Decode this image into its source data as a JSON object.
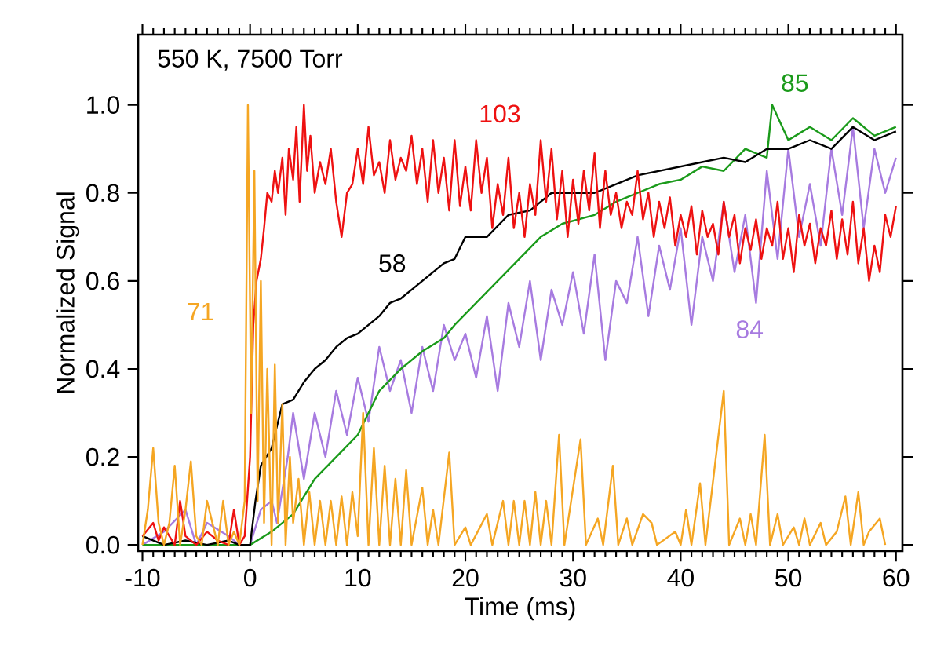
{
  "chart_data": {
    "type": "line",
    "xlabel": "Time (ms)",
    "ylabel": "Normalized Signal",
    "annotations": [
      "550 K, 7500 Torr"
    ],
    "xlim": [
      -10.4,
      60.6
    ],
    "ylim": [
      -0.014,
      1.16
    ],
    "xticks": [
      -10,
      0,
      10,
      20,
      30,
      40,
      50,
      60
    ],
    "yticks": [
      {
        "value": 0,
        "label": "0.0"
      },
      {
        "value": 0.2,
        "label": "0.2"
      },
      {
        "value": 0.4,
        "label": "0.4"
      },
      {
        "value": 0.6,
        "label": "0.6"
      },
      {
        "value": 0.8,
        "label": "0.8"
      },
      {
        "value": 1.0,
        "label": "1.0"
      }
    ],
    "grid": false,
    "legend": false,
    "marker": "none",
    "line_style": "solid",
    "series": [
      {
        "name": "84",
        "color": "#a77be0",
        "x": [
          -10,
          -8,
          -6,
          -5,
          -4,
          -2,
          -1,
          0,
          1,
          2,
          2.5,
          3.5,
          4,
          5,
          6,
          7,
          8,
          9,
          10,
          11,
          12,
          13,
          14,
          15,
          16,
          17,
          18,
          19,
          20,
          21,
          22,
          23,
          24,
          25,
          26,
          27,
          28,
          29,
          30,
          31,
          32,
          33,
          34,
          35,
          36,
          37,
          38,
          39,
          40,
          41,
          42,
          43,
          44,
          45,
          46,
          47,
          48,
          49,
          50,
          51,
          52,
          53,
          54,
          55,
          56,
          57,
          58,
          59,
          60
        ],
        "values": [
          0,
          0.03,
          0.08,
          0,
          0.05,
          0.02,
          0,
          0,
          0.08,
          0.1,
          0.05,
          0.2,
          0.3,
          0.15,
          0.3,
          0.2,
          0.35,
          0.25,
          0.38,
          0.28,
          0.45,
          0.35,
          0.42,
          0.3,
          0.45,
          0.35,
          0.5,
          0.42,
          0.48,
          0.38,
          0.52,
          0.35,
          0.55,
          0.45,
          0.6,
          0.42,
          0.58,
          0.5,
          0.62,
          0.48,
          0.66,
          0.42,
          0.6,
          0.55,
          0.7,
          0.52,
          0.68,
          0.58,
          0.72,
          0.5,
          0.7,
          0.6,
          0.78,
          0.62,
          0.75,
          0.55,
          0.85,
          0.65,
          0.9,
          0.7,
          0.82,
          0.68,
          0.9,
          0.75,
          0.95,
          0.72,
          0.9,
          0.8,
          0.88
        ]
      },
      {
        "name": "85",
        "color": "#1a9a1a",
        "x": [
          -10,
          -5,
          -1,
          0,
          2,
          4,
          6,
          8,
          10,
          11,
          12,
          14,
          16,
          18,
          19,
          21,
          23,
          25,
          27,
          29,
          32,
          34,
          36,
          38,
          40,
          42,
          44,
          46,
          48,
          48.5,
          50,
          52,
          54,
          56,
          58,
          60
        ],
        "values": [
          0,
          0,
          0,
          0,
          0.03,
          0.07,
          0.15,
          0.2,
          0.25,
          0.3,
          0.35,
          0.4,
          0.44,
          0.47,
          0.5,
          0.55,
          0.6,
          0.65,
          0.7,
          0.73,
          0.75,
          0.78,
          0.8,
          0.82,
          0.83,
          0.86,
          0.85,
          0.9,
          0.88,
          1.0,
          0.92,
          0.95,
          0.92,
          0.97,
          0.93,
          0.95
        ]
      },
      {
        "name": "58",
        "color": "#000000",
        "x": [
          -10,
          -8,
          -6,
          -4,
          -2,
          -1,
          0,
          0.5,
          1,
          2,
          3,
          4,
          5,
          6,
          7,
          8,
          9,
          10,
          12,
          13,
          14,
          15,
          17,
          18,
          19,
          20,
          22,
          24,
          26,
          28,
          30,
          32,
          34,
          36,
          38,
          40,
          42,
          44,
          46,
          48,
          50,
          52,
          54,
          56,
          58,
          60
        ],
        "values": [
          0.02,
          0,
          0.01,
          0,
          0.01,
          0,
          0,
          0.1,
          0.18,
          0.22,
          0.32,
          0.33,
          0.37,
          0.4,
          0.42,
          0.45,
          0.47,
          0.48,
          0.52,
          0.55,
          0.56,
          0.58,
          0.62,
          0.64,
          0.65,
          0.7,
          0.7,
          0.75,
          0.76,
          0.8,
          0.8,
          0.8,
          0.82,
          0.84,
          0.85,
          0.86,
          0.87,
          0.88,
          0.87,
          0.9,
          0.9,
          0.92,
          0.9,
          0.95,
          0.92,
          0.94
        ]
      },
      {
        "name": "103",
        "color": "#ee1111",
        "x": [
          -10,
          -9,
          -8.5,
          -8,
          -7,
          -6.5,
          -6,
          -5,
          -4,
          -3,
          -2,
          -1.5,
          -1,
          -0.5,
          0,
          0.3,
          0.6,
          1,
          1.3,
          1.6,
          2,
          2.3,
          2.6,
          3,
          3.3,
          3.6,
          4,
          4.3,
          4.6,
          5,
          5.3,
          5.6,
          6,
          6.5,
          7,
          7.5,
          8,
          8.5,
          9,
          9.5,
          10,
          10.5,
          11,
          11.5,
          12,
          12.5,
          13,
          13.5,
          14,
          14.5,
          15,
          15.5,
          16,
          16.5,
          17,
          17.5,
          18,
          18.5,
          19,
          19.5,
          20,
          20.5,
          21,
          21.5,
          22,
          22.5,
          23,
          23.5,
          24,
          24.5,
          25,
          25.5,
          26,
          26.5,
          27,
          27.5,
          28,
          28.5,
          29,
          29.5,
          30,
          30.5,
          31,
          31.5,
          32,
          32.5,
          33,
          33.5,
          34,
          34.5,
          35,
          35.5,
          36,
          36.5,
          37,
          37.5,
          38,
          38.5,
          39,
          39.5,
          40,
          40.5,
          41,
          41.5,
          42,
          42.5,
          43,
          43.5,
          44,
          44.5,
          45,
          45.5,
          46,
          46.5,
          47,
          47.5,
          48,
          48.5,
          49,
          49.5,
          50,
          50.5,
          51,
          51.5,
          52,
          52.5,
          53,
          53.5,
          54,
          54.5,
          55,
          55.5,
          56,
          56.5,
          57,
          57.5,
          58,
          58.5,
          59,
          59.5,
          60
        ],
        "values": [
          0.02,
          0.05,
          0.01,
          0.04,
          0,
          0.1,
          0.02,
          0,
          0.03,
          0.01,
          0,
          0.08,
          0,
          0.02,
          0.2,
          0.5,
          0.6,
          0.65,
          0.72,
          0.8,
          0.78,
          0.85,
          0.8,
          0.88,
          0.75,
          0.9,
          0.83,
          0.95,
          0.78,
          1.0,
          0.85,
          0.93,
          0.8,
          0.87,
          0.82,
          0.9,
          0.78,
          0.7,
          0.8,
          0.82,
          0.9,
          0.82,
          0.95,
          0.84,
          0.87,
          0.8,
          0.92,
          0.83,
          0.88,
          0.85,
          0.93,
          0.82,
          0.9,
          0.78,
          0.92,
          0.8,
          0.88,
          0.76,
          0.92,
          0.77,
          0.86,
          0.76,
          0.92,
          0.8,
          0.88,
          0.72,
          0.82,
          0.75,
          0.88,
          0.72,
          0.8,
          0.7,
          0.82,
          0.75,
          0.92,
          0.78,
          0.9,
          0.74,
          0.85,
          0.7,
          0.83,
          0.73,
          0.85,
          0.76,
          0.89,
          0.72,
          0.85,
          0.75,
          0.8,
          0.72,
          0.78,
          0.75,
          0.85,
          0.74,
          0.8,
          0.7,
          0.78,
          0.72,
          0.79,
          0.68,
          0.75,
          0.7,
          0.77,
          0.66,
          0.76,
          0.7,
          0.73,
          0.66,
          0.78,
          0.7,
          0.75,
          0.64,
          0.72,
          0.67,
          0.74,
          0.65,
          0.72,
          0.68,
          0.78,
          0.65,
          0.72,
          0.62,
          0.75,
          0.68,
          0.73,
          0.64,
          0.72,
          0.68,
          0.76,
          0.65,
          0.74,
          0.66,
          0.78,
          0.64,
          0.72,
          0.6,
          0.68,
          0.62,
          0.75,
          0.7,
          0.77
        ]
      },
      {
        "name": "71",
        "color": "#f5a623",
        "x": [
          -10,
          -9.5,
          -9,
          -8.5,
          -8,
          -7.5,
          -7,
          -6.5,
          -6,
          -5.5,
          -5,
          -4.5,
          -4,
          -3.5,
          -3,
          -2.5,
          -2,
          -1.5,
          -1,
          -0.5,
          -0.2,
          0.1,
          0.4,
          0.7,
          1,
          1.3,
          1.6,
          2,
          2.3,
          2.6,
          3,
          3.3,
          3.7,
          4,
          4.5,
          5,
          5.5,
          6,
          6.5,
          7,
          7.5,
          8,
          8.5,
          9,
          9.5,
          10,
          10.5,
          11,
          11.5,
          12,
          12.5,
          13,
          13.5,
          14,
          14.5,
          15,
          16,
          16.5,
          17,
          17.5,
          18.5,
          19,
          20,
          20.5,
          22,
          22.5,
          23.5,
          24,
          24.5,
          25,
          25.5,
          26,
          26.5,
          27,
          27.5,
          28,
          28.7,
          29.2,
          30.7,
          31.2,
          32.3,
          32.8,
          33.7,
          34.2,
          35,
          35.5,
          36.5,
          37.3,
          37.8,
          39.5,
          40,
          40.5,
          41,
          41.8,
          42.3,
          44,
          44.5,
          45.5,
          46,
          46.5,
          47,
          47.8,
          48.3,
          49,
          49.5,
          50.5,
          51,
          51.5,
          52,
          53,
          53.5,
          54.5,
          55.3,
          55.8,
          56.5,
          57,
          57.5,
          58.5,
          59
        ],
        "values": [
          0,
          0.08,
          0.22,
          0.05,
          0,
          0.05,
          0.18,
          0,
          0.08,
          0.19,
          0.02,
          0,
          0.1,
          0.05,
          0,
          0.1,
          0,
          0.03,
          0,
          0.1,
          1.0,
          0.3,
          0.85,
          0.1,
          0.6,
          0.05,
          0.4,
          0,
          0.41,
          0.05,
          0.32,
          0,
          0.2,
          0.05,
          0.15,
          0,
          0.12,
          0,
          0.1,
          0,
          0.1,
          0,
          0.11,
          0,
          0.12,
          0.02,
          0.3,
          0,
          0.22,
          0,
          0.18,
          0,
          0.15,
          0,
          0.17,
          0,
          0.13,
          0,
          0.08,
          0,
          0.21,
          0,
          0.04,
          0,
          0.07,
          0,
          0.1,
          0,
          0.1,
          0,
          0.1,
          0,
          0.12,
          0,
          0.1,
          0,
          0.25,
          0,
          0.24,
          0,
          0.06,
          0,
          0.18,
          0,
          0.06,
          0,
          0.07,
          0.05,
          0,
          0.03,
          0,
          0.08,
          0,
          0.14,
          0,
          0.35,
          0,
          0.06,
          0,
          0.07,
          0,
          0.25,
          0,
          0.07,
          0,
          0.04,
          0,
          0.06,
          0,
          0.05,
          0,
          0.03,
          0.11,
          0,
          0.12,
          0,
          0.03,
          0.06,
          0
        ]
      }
    ]
  }
}
